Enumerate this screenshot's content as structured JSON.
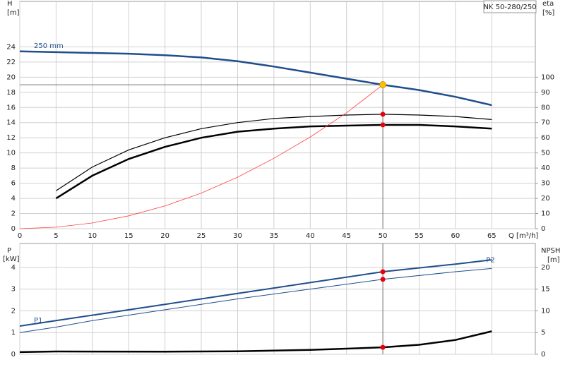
{
  "chart_data": [
    {
      "type": "line",
      "title": "NK 50-280/250",
      "ylabel": "H",
      "yunit": "[m]",
      "y2label": "eta",
      "y2unit": "[%]",
      "xlabel": "Q [m³/h]",
      "xlim": [
        0,
        71
      ],
      "xticks": [
        0,
        5,
        10,
        15,
        20,
        25,
        30,
        35,
        40,
        45,
        50,
        55,
        60,
        65
      ],
      "ylim": [
        0,
        30
      ],
      "yticks": [
        0,
        2,
        4,
        6,
        8,
        10,
        12,
        14,
        16,
        18,
        20,
        22,
        24
      ],
      "y2lim": [
        0,
        150
      ],
      "y2ticks": [
        0,
        10,
        20,
        30,
        40,
        50,
        60,
        70,
        80,
        90,
        100
      ],
      "grid": true,
      "duty_point": {
        "x": 50,
        "y": 19
      },
      "duty_color": "#ffc000",
      "marker_color": "#e8000b",
      "series": [
        {
          "name": "250 mm",
          "color": "#1f4e8c",
          "width": 2.5,
          "x": [
            0,
            5,
            10,
            15,
            20,
            25,
            30,
            35,
            40,
            45,
            50,
            55,
            60,
            65
          ],
          "values": [
            23.4,
            23.3,
            23.2,
            23.1,
            22.9,
            22.6,
            22.1,
            21.4,
            20.6,
            19.8,
            19.0,
            18.3,
            17.4,
            16.3
          ]
        },
        {
          "color": "#000000",
          "width": 1.2,
          "axis": "y2",
          "marked": true,
          "x": [
            5,
            10,
            15,
            20,
            25,
            30,
            35,
            40,
            45,
            50,
            55,
            60,
            65
          ],
          "values": [
            25,
            40.7,
            52,
            60,
            66,
            70,
            72.7,
            74,
            75,
            75.5,
            75,
            74,
            72
          ]
        },
        {
          "color": "#000000",
          "width": 2.5,
          "axis": "y2",
          "marked": true,
          "x": [
            5,
            10,
            15,
            20,
            25,
            30,
            35,
            40,
            45,
            50,
            55,
            60,
            65
          ],
          "values": [
            20,
            35,
            46,
            54,
            60,
            64,
            66,
            67.5,
            68,
            68.5,
            68.5,
            67.5,
            66
          ]
        },
        {
          "color": "#ff4040",
          "width": 0.8,
          "x": [
            0,
            5,
            10,
            15,
            20,
            25,
            30,
            35,
            40,
            45,
            50
          ],
          "values": [
            0,
            0.2,
            0.75,
            1.7,
            3.0,
            4.7,
            6.8,
            9.3,
            12.1,
            15.3,
            19.0
          ]
        }
      ]
    },
    {
      "type": "line",
      "ylabel": "P",
      "yunit": "[kW]",
      "y2label": "NPSH",
      "y2unit": "[m]",
      "xlim": [
        0,
        71
      ],
      "ylim": [
        0,
        5.1
      ],
      "yticks": [
        0,
        1,
        2,
        3,
        4
      ],
      "y2lim": [
        0,
        25.5
      ],
      "y2ticks": [
        0,
        5,
        10,
        15,
        20
      ],
      "grid": true,
      "duty_x": 50,
      "marker_color": "#e8000b",
      "series": [
        {
          "name": "P1",
          "color": "#1f4e8c",
          "width": 2,
          "marked": true,
          "x": [
            0,
            5,
            10,
            20,
            30,
            40,
            50,
            60,
            65
          ],
          "values": [
            1.3,
            1.55,
            1.8,
            2.3,
            2.8,
            3.3,
            3.8,
            4.15,
            4.35
          ]
        },
        {
          "name": "P2",
          "color": "#1f4e8c",
          "width": 1,
          "marked": true,
          "x": [
            0,
            5,
            10,
            20,
            30,
            40,
            50,
            60,
            65
          ],
          "values": [
            1.0,
            1.25,
            1.55,
            2.05,
            2.55,
            3.0,
            3.45,
            3.8,
            3.95
          ]
        },
        {
          "color": "#000000",
          "width": 2.5,
          "axis": "y2",
          "marked": true,
          "x": [
            0,
            5,
            20,
            30,
            40,
            45,
            50,
            55,
            60,
            65
          ],
          "values": [
            0.5,
            0.65,
            0.6,
            0.7,
            1.0,
            1.3,
            1.6,
            2.2,
            3.3,
            5.3
          ]
        }
      ]
    }
  ]
}
